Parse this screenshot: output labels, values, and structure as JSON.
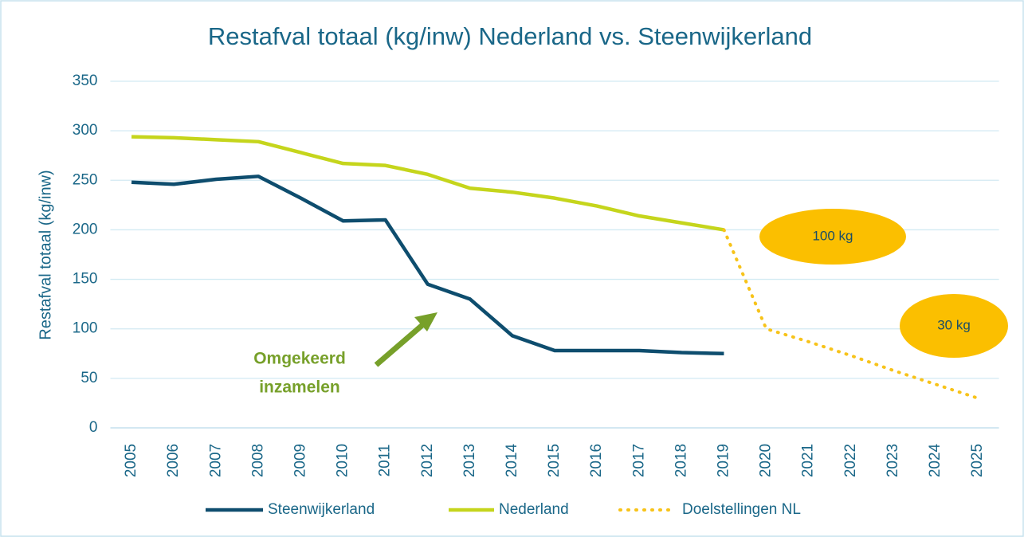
{
  "chart_data": {
    "type": "line",
    "title": "Restafval totaal (kg/inw) Nederland vs. Steenwijkerland",
    "ylabel": "Restafval totaal (kg/inw)",
    "categories": [
      "2005",
      "2006",
      "2007",
      "2008",
      "2009",
      "2010",
      "2011",
      "2012",
      "2013",
      "2014",
      "2015",
      "2016",
      "2017",
      "2018",
      "2019",
      "2020",
      "2021",
      "2022",
      "2023",
      "2024",
      "2025"
    ],
    "series": [
      {
        "name": "Steenwijkerland",
        "color": "#0e4d6e",
        "style": "solid",
        "values": [
          248,
          246,
          251,
          254,
          232,
          209,
          210,
          145,
          130,
          93,
          78,
          78,
          78,
          76,
          75,
          null,
          null,
          null,
          null,
          null,
          null
        ]
      },
      {
        "name": "Nederland",
        "color": "#c5d51c",
        "style": "solid",
        "values": [
          294,
          293,
          291,
          289,
          278,
          267,
          265,
          256,
          242,
          238,
          232,
          224,
          214,
          207,
          200,
          null,
          null,
          null,
          null,
          null,
          null
        ]
      },
      {
        "name": "Doelstellingen NL",
        "color": "#f7c31a",
        "style": "dotted",
        "values": [
          null,
          null,
          null,
          null,
          null,
          null,
          null,
          null,
          null,
          null,
          null,
          null,
          null,
          null,
          200,
          100,
          87,
          73,
          58,
          44,
          30
        ]
      }
    ],
    "ylim": [
      0,
      350
    ],
    "yticks": [
      0,
      50,
      100,
      150,
      200,
      250,
      300,
      350
    ],
    "grid": true,
    "legend": "bottom",
    "annotations": [
      {
        "text": "100 kg",
        "shape": "ellipse",
        "color": "#fbbf00"
      },
      {
        "text": "30 kg",
        "shape": "ellipse",
        "color": "#fbbf00"
      },
      {
        "lines": [
          "Omgekeerd",
          "inzamelen"
        ],
        "color": "#77a02a"
      }
    ]
  }
}
